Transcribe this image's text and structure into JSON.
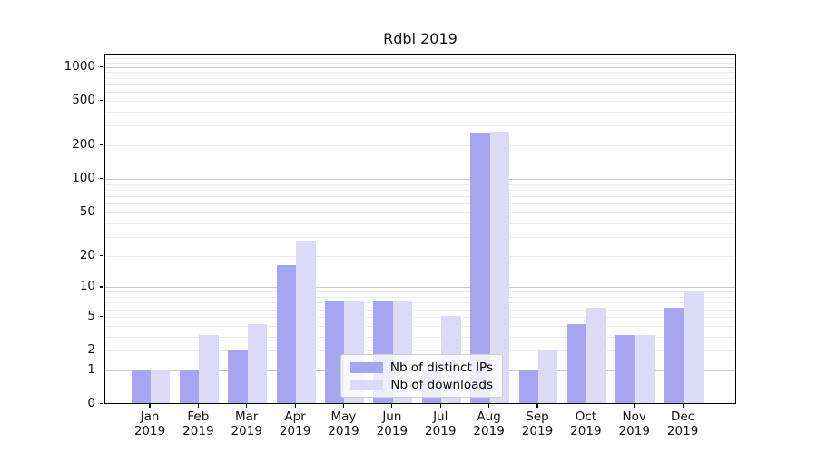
{
  "title": "Rdbi 2019",
  "chart_data": {
    "type": "bar",
    "title": "Rdbi 2019",
    "categories": [
      "Jan 2019",
      "Feb 2019",
      "Mar 2019",
      "Apr 2019",
      "May 2019",
      "Jun 2019",
      "Jul 2019",
      "Aug 2019",
      "Sep 2019",
      "Oct 2019",
      "Nov 2019",
      "Dec 2019"
    ],
    "series": [
      {
        "name": "Nb of distinct IPs",
        "color": "#a6a6f0",
        "values": [
          1,
          1,
          2,
          16,
          7,
          7,
          1,
          249,
          1,
          4,
          3,
          6
        ]
      },
      {
        "name": "Nb of downloads",
        "color": "#dbdbf8",
        "values": [
          1,
          3,
          4,
          27,
          7,
          7,
          5,
          259,
          2,
          6,
          3,
          9
        ]
      }
    ],
    "ylabel": "",
    "xlabel": "",
    "y_scale": "log10(1+value)",
    "y_ticks": [
      1000,
      500,
      200,
      100,
      50,
      20,
      10,
      5,
      2,
      1,
      0
    ],
    "y_minor_gridlines": [
      2,
      3,
      4,
      5,
      6,
      7,
      8,
      9,
      20,
      30,
      40,
      50,
      60,
      70,
      80,
      90,
      200,
      300,
      400,
      500,
      600,
      700,
      800,
      900,
      1100,
      1200
    ],
    "y_major_gridlines": [
      1,
      10,
      100,
      1000
    ],
    "ylim": [
      0,
      1270
    ],
    "grid": "horizontal",
    "legend_position": "lower-center-inside",
    "colors": {
      "bar_dark": "#a6a6f0",
      "bar_light": "#dbdbf8",
      "grid_major": "#c9c9c9",
      "grid_minor": "#ebebeb",
      "axis": "#000000"
    }
  }
}
